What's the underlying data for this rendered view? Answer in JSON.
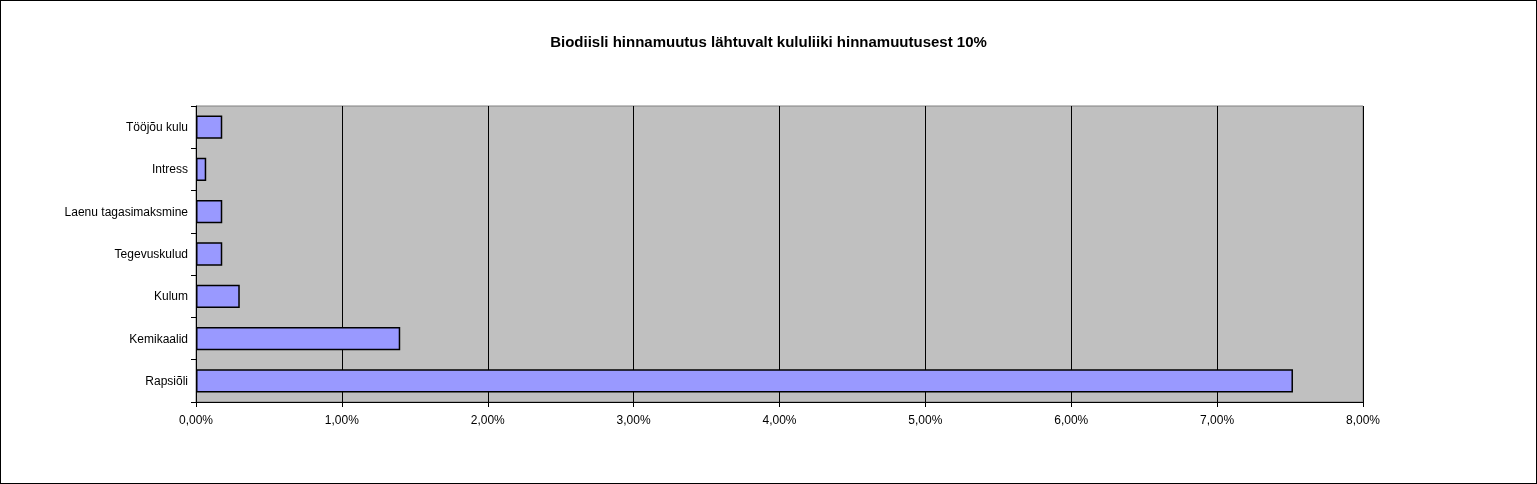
{
  "chart_data": {
    "type": "bar",
    "orientation": "horizontal",
    "title": "Biodiisli hinnamuutus lähtuvalt kululiiki hinnamuutusest 10%",
    "categories": [
      "Tööjõu kulu",
      "Intress",
      "Laenu tagasimaksmine",
      "Tegevuskulud",
      "Kulum",
      "Kemikaalid",
      "Rapsiõli"
    ],
    "values": [
      0.18,
      0.07,
      0.18,
      0.18,
      0.3,
      1.4,
      7.52
    ],
    "color": "#9999ff",
    "xlim": [
      0,
      8
    ],
    "xticks": [
      {
        "value": 0,
        "label": "0,00%"
      },
      {
        "value": 1,
        "label": "1,00%"
      },
      {
        "value": 2,
        "label": "2,00%"
      },
      {
        "value": 3,
        "label": "3,00%"
      },
      {
        "value": 4,
        "label": "4,00%"
      },
      {
        "value": 5,
        "label": "5,00%"
      },
      {
        "value": 6,
        "label": "6,00%"
      },
      {
        "value": 7,
        "label": "7,00%"
      },
      {
        "value": 8,
        "label": "8,00%"
      }
    ],
    "grid": "x"
  }
}
